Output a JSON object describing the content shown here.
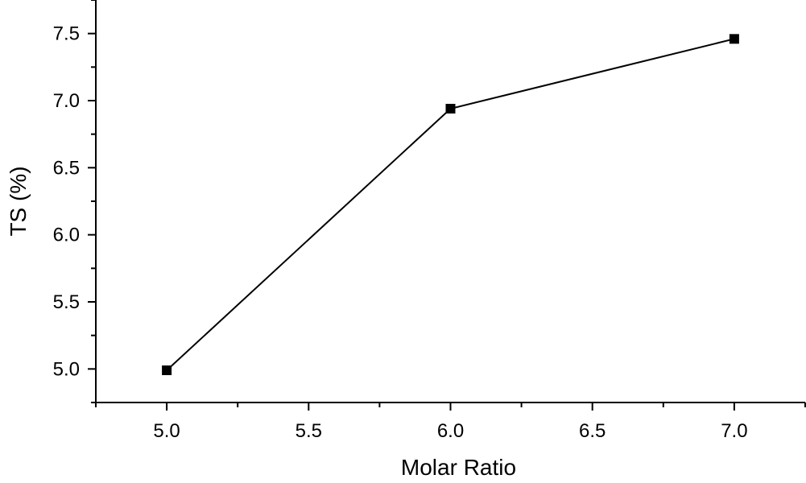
{
  "chart_data": {
    "type": "line",
    "title": "",
    "xlabel": "Molar  Ratio",
    "ylabel": "TS (%)",
    "xlim": [
      4.75,
      7.25
    ],
    "ylim": [
      4.75,
      7.75
    ],
    "x_ticks": [
      5.0,
      5.5,
      6.0,
      6.5,
      7.0
    ],
    "x_tick_labels": [
      "5.0",
      "5.5",
      "6.0",
      "6.5",
      "7.0"
    ],
    "y_ticks": [
      5.0,
      5.5,
      6.0,
      6.5,
      7.0,
      7.5
    ],
    "y_tick_labels": [
      "5.0",
      "5.5",
      "6.0",
      "6.5",
      "7.0",
      "7.5"
    ],
    "grid": false,
    "series": [
      {
        "x": [
          5.0,
          6.0,
          7.0
        ],
        "y": [
          4.99,
          6.94,
          7.46
        ],
        "marker": "square",
        "color": "#000000"
      }
    ]
  }
}
